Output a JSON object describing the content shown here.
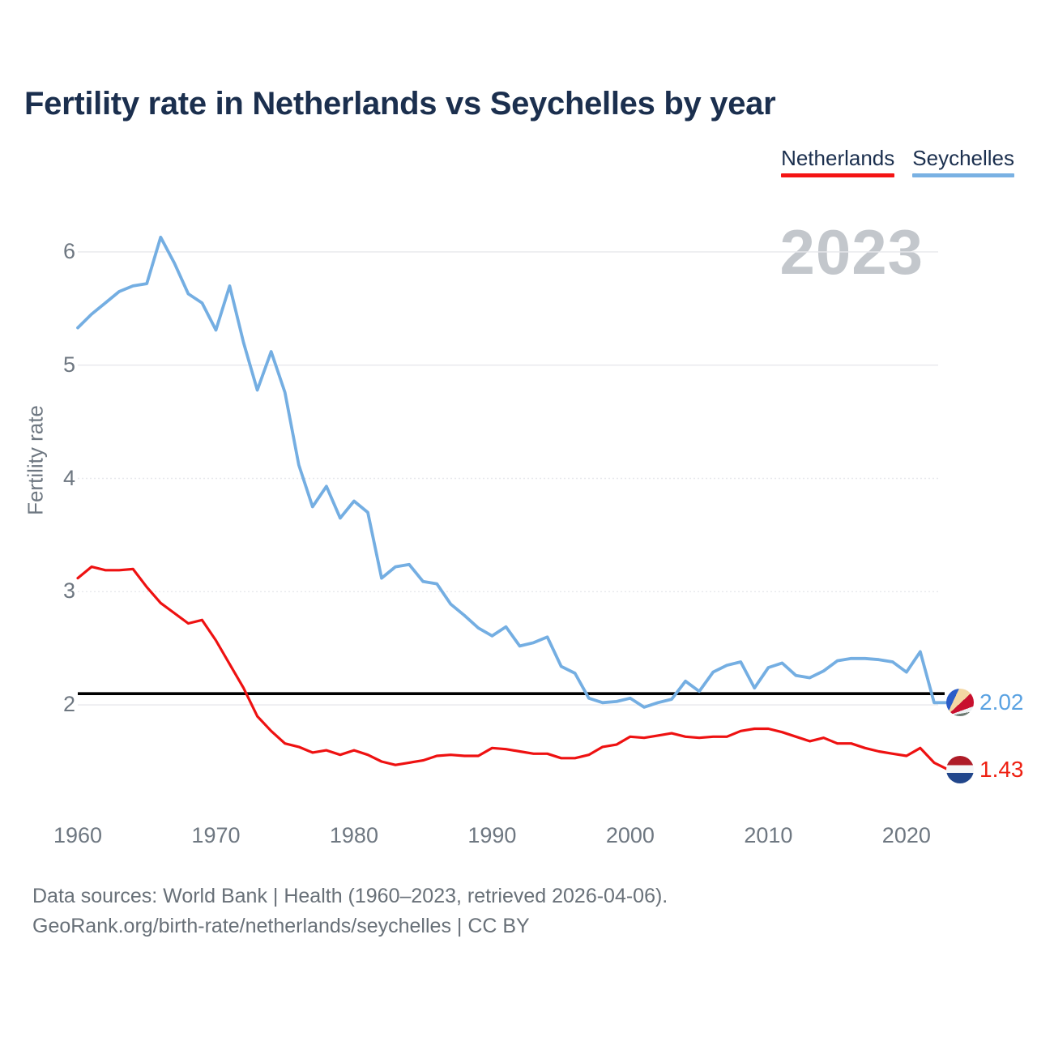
{
  "title": "Fertility rate in Netherlands vs Seychelles by year",
  "watermark": "2023",
  "legend": [
    {
      "label": "Netherlands",
      "color": "#f41414"
    },
    {
      "label": "Seychelles",
      "color": "#79b1e3"
    }
  ],
  "y_axis": {
    "label": "Fertility rate",
    "ticks": [
      6,
      5,
      4,
      3,
      2
    ]
  },
  "x_axis": {
    "ticks": [
      1960,
      1970,
      1980,
      1990,
      2000,
      2010,
      2020
    ]
  },
  "reference_line": {
    "value": 2.1,
    "color": "#000000"
  },
  "end_labels": [
    {
      "series": "Seychelles",
      "value": "2.02",
      "color": "#5aa2e2",
      "flag_icon": "seychelles-flag-icon"
    },
    {
      "series": "Netherlands",
      "value": "1.43",
      "color": "#ee2012",
      "flag_icon": "netherlands-flag-icon"
    }
  ],
  "footer": {
    "line1": "Data sources: World Bank | Health (1960–2023, retrieved 2026-04-06).",
    "line2": "GeoRank.org/birth-rate/netherlands/seychelles | CC BY"
  },
  "chart_data": {
    "type": "line",
    "title": "Fertility rate in Netherlands vs Seychelles by year",
    "xlabel": "",
    "ylabel": "Fertility rate",
    "xlim": [
      1960,
      2023
    ],
    "ylim": [
      1.3,
      6.3
    ],
    "grid": "horizontal",
    "legend_position": "top-right",
    "x": [
      1960,
      1961,
      1962,
      1963,
      1964,
      1965,
      1966,
      1967,
      1968,
      1969,
      1970,
      1971,
      1972,
      1973,
      1974,
      1975,
      1976,
      1977,
      1978,
      1979,
      1980,
      1981,
      1982,
      1983,
      1984,
      1985,
      1986,
      1987,
      1988,
      1989,
      1990,
      1991,
      1992,
      1993,
      1994,
      1995,
      1996,
      1997,
      1998,
      1999,
      2000,
      2001,
      2002,
      2003,
      2004,
      2005,
      2006,
      2007,
      2008,
      2009,
      2010,
      2011,
      2012,
      2013,
      2014,
      2015,
      2016,
      2017,
      2018,
      2019,
      2020,
      2021,
      2022,
      2023
    ],
    "series": [
      {
        "name": "Netherlands",
        "color": "#ee1111",
        "values": [
          3.12,
          3.22,
          3.19,
          3.19,
          3.2,
          3.04,
          2.9,
          2.81,
          2.72,
          2.75,
          2.57,
          2.36,
          2.15,
          1.9,
          1.77,
          1.66,
          1.63,
          1.58,
          1.6,
          1.56,
          1.6,
          1.56,
          1.5,
          1.47,
          1.49,
          1.51,
          1.55,
          1.56,
          1.55,
          1.55,
          1.62,
          1.61,
          1.59,
          1.57,
          1.57,
          1.53,
          1.53,
          1.56,
          1.63,
          1.65,
          1.72,
          1.71,
          1.73,
          1.75,
          1.72,
          1.71,
          1.72,
          1.72,
          1.77,
          1.79,
          1.79,
          1.76,
          1.72,
          1.68,
          1.71,
          1.66,
          1.66,
          1.62,
          1.59,
          1.57,
          1.55,
          1.62,
          1.49,
          1.43
        ]
      },
      {
        "name": "Seychelles",
        "color": "#74aee2",
        "values": [
          5.33,
          5.45,
          5.55,
          5.65,
          5.7,
          5.72,
          6.13,
          5.9,
          5.63,
          5.55,
          5.31,
          5.7,
          5.2,
          4.78,
          5.12,
          4.76,
          4.12,
          3.75,
          3.93,
          3.65,
          3.8,
          3.7,
          3.12,
          3.22,
          3.24,
          3.09,
          3.07,
          2.89,
          2.79,
          2.68,
          2.61,
          2.69,
          2.52,
          2.55,
          2.6,
          2.34,
          2.28,
          2.06,
          2.02,
          2.03,
          2.06,
          1.98,
          2.02,
          2.05,
          2.21,
          2.12,
          2.29,
          2.35,
          2.38,
          2.15,
          2.33,
          2.37,
          2.26,
          2.24,
          2.3,
          2.39,
          2.41,
          2.41,
          2.4,
          2.38,
          2.29,
          2.47,
          2.02,
          2.02
        ]
      }
    ],
    "annotations": {
      "reference_line_y": 2.1,
      "watermark": "2023",
      "end_values": {
        "Seychelles": 2.02,
        "Netherlands": 1.43
      }
    }
  }
}
